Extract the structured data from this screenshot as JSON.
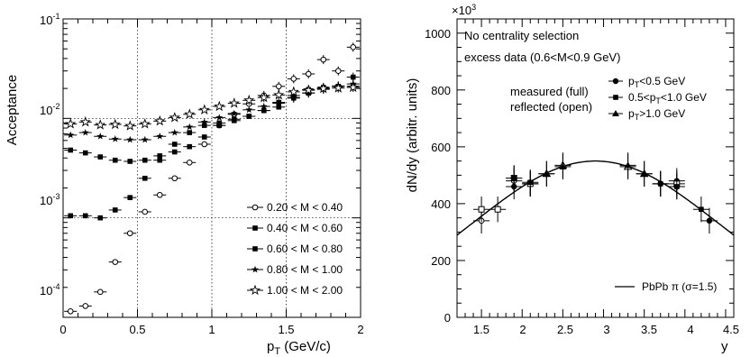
{
  "chart_data": [
    {
      "type": "scatter",
      "title": "",
      "xlabel": "p_T (GeV/c)",
      "ylabel": "Acceptance",
      "xlim": [
        0,
        2
      ],
      "ylim": [
        0.0001,
        0.1
      ],
      "y_scale": "log",
      "grid": "dotted at x=0.5,1,1.5 and y=1e-4,1e-3,1e-2",
      "legend_position": "bottom-right",
      "x_tick_labels": [
        "0",
        "0.5",
        "1",
        "1.5",
        "2"
      ],
      "y_tick_labels": [
        {
          "base": "10",
          "exp": "-4"
        },
        {
          "base": "10",
          "exp": "-3"
        },
        {
          "base": "10",
          "exp": "-2"
        },
        {
          "base": "10",
          "exp": "-1"
        }
      ],
      "series": [
        {
          "name": "0.20 < M < 0.40",
          "marker": "open-circle",
          "x": [
            0.05,
            0.15,
            0.25,
            0.35,
            0.45,
            0.55,
            0.65,
            0.75,
            0.85,
            0.95,
            1.05,
            1.15,
            1.25,
            1.35,
            1.45,
            1.55,
            1.65,
            1.75,
            1.85,
            1.95
          ],
          "y": [
            0.000115,
            0.00013,
            0.00018,
            0.00036,
            0.0007,
            0.00115,
            0.0017,
            0.0025,
            0.0036,
            0.0055,
            0.0085,
            0.011,
            0.014,
            0.017,
            0.021,
            0.025,
            0.028,
            0.039,
            0.03,
            0.052
          ]
        },
        {
          "name": "0.40 < M < 0.60",
          "marker": "filled-square",
          "x": [
            0.05,
            0.15,
            0.25,
            0.35,
            0.45,
            0.55,
            0.65,
            0.75,
            0.85,
            0.95,
            1.05,
            1.15,
            1.25,
            1.35,
            1.45,
            1.55,
            1.65,
            1.75,
            1.85,
            1.95
          ],
          "y": [
            0.00105,
            0.00105,
            0.001,
            0.0012,
            0.0016,
            0.0025,
            0.0038,
            0.0055,
            0.0072,
            0.0085,
            0.009,
            0.0095,
            0.0105,
            0.012,
            0.013,
            0.016,
            0.018,
            0.02,
            0.021,
            0.026
          ]
        },
        {
          "name": "0.60 < M < 0.80",
          "marker": "filled-square",
          "x": [
            0.05,
            0.15,
            0.25,
            0.35,
            0.45,
            0.55,
            0.65,
            0.75,
            0.85,
            0.95,
            1.05,
            1.15,
            1.25,
            1.35,
            1.45,
            1.55,
            1.65,
            1.75,
            1.85,
            1.95
          ],
          "y": [
            0.0048,
            0.0045,
            0.0041,
            0.0038,
            0.0037,
            0.0038,
            0.0042,
            0.0046,
            0.0052,
            0.0065,
            0.0085,
            0.0098,
            0.0105,
            0.012,
            0.0145,
            0.017,
            0.0195,
            0.0205,
            0.021,
            0.021
          ]
        },
        {
          "name": "0.80 < M < 1.00",
          "marker": "filled-star",
          "x": [
            0.05,
            0.15,
            0.25,
            0.35,
            0.45,
            0.55,
            0.65,
            0.75,
            0.85,
            0.95,
            1.05,
            1.15,
            1.25,
            1.35,
            1.45,
            1.55,
            1.65,
            1.75,
            1.85,
            1.95
          ],
          "y": [
            0.0068,
            0.0072,
            0.0066,
            0.0062,
            0.0061,
            0.0061,
            0.0066,
            0.0072,
            0.0082,
            0.0092,
            0.0102,
            0.0112,
            0.0122,
            0.0132,
            0.0142,
            0.0162,
            0.018,
            0.0196,
            0.0212,
            0.0222
          ]
        },
        {
          "name": "1.00 < M < 2.00",
          "marker": "open-star",
          "x": [
            0.05,
            0.15,
            0.25,
            0.35,
            0.45,
            0.55,
            0.65,
            0.75,
            0.85,
            0.95,
            1.05,
            1.15,
            1.25,
            1.35,
            1.45,
            1.55,
            1.65,
            1.75,
            1.85,
            1.95
          ],
          "y": [
            0.0088,
            0.0092,
            0.0086,
            0.0087,
            0.0084,
            0.0088,
            0.0094,
            0.0102,
            0.011,
            0.0122,
            0.0132,
            0.0142,
            0.0152,
            0.0162,
            0.0172,
            0.0185,
            0.0192,
            0.02,
            0.0202,
            0.0205
          ]
        }
      ]
    },
    {
      "type": "scatter",
      "title": "",
      "xlabel": "y",
      "ylabel": "dN/dy (arbitr. units)",
      "xlim": [
        1.2,
        4.6
      ],
      "ylim": [
        0,
        1050
      ],
      "y_scale_label": "×10",
      "y_scale_exp": "3",
      "x_ticks": [
        1.5,
        2,
        2.5,
        3,
        3.5,
        4,
        4.5
      ],
      "x_tick_labels": [
        "1.5",
        "2",
        "2.5",
        "3",
        "3.5",
        "4",
        "4.5"
      ],
      "y_ticks": [
        0,
        200,
        400,
        600,
        800,
        1000
      ],
      "y_tick_labels": [
        "0",
        "200",
        "400",
        "600",
        "800",
        "1000"
      ],
      "grid": false,
      "legend_position": "top-right",
      "annotations": [
        "No centrality selection",
        "excess data (0.6<M<0.9 GeV)",
        "measured (full)",
        "reflected (open)"
      ],
      "series": [
        {
          "name": "p_T<0.5 GeV",
          "marker": "filled-circle",
          "x": [
            1.9,
            2.1,
            3.7,
            3.9,
            4.3
          ],
          "y": [
            460,
            470,
            470,
            480,
            340
          ],
          "reflected": {
            "x": [
              1.5,
              1.9,
              2.1,
              3.7,
              3.9
            ],
            "y": [
              340,
              480,
              470,
              470,
              460
            ]
          }
        },
        {
          "name": "0.5<p_T<1.0 GeV",
          "marker": "filled-square",
          "x": [
            1.9,
            2.1,
            3.7,
            3.9,
            4.2
          ],
          "y": [
            490,
            475,
            470,
            460,
            380
          ],
          "reflected": {
            "x": [
              1.5,
              1.7,
              1.9,
              2.1,
              3.9
            ],
            "y": [
              380,
              380,
              490,
              470,
              470
            ]
          }
        },
        {
          "name": "p_T>1.0 GeV",
          "marker": "filled-triangle",
          "x": [
            2.3,
            2.5,
            3.3,
            3.5
          ],
          "y": [
            505,
            530,
            535,
            505
          ],
          "reflected": {
            "x": [
              2.3,
              2.5,
              3.3,
              3.5
            ],
            "y": [
              505,
              535,
              530,
              505
            ]
          }
        }
      ],
      "curve": {
        "name": "PbPb π (σ=1.5)",
        "center": 2.9,
        "sigma": 1.5,
        "amplitude": 550
      }
    }
  ]
}
